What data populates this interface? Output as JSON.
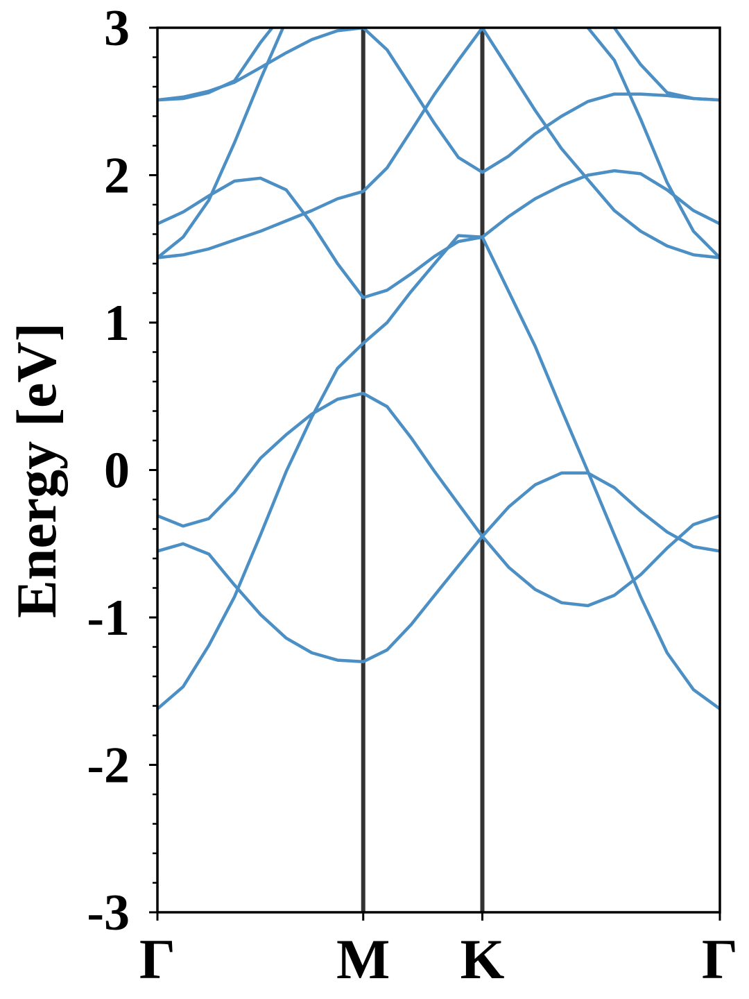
{
  "chart_data": {
    "type": "line",
    "ylabel": "Energy [eV]",
    "color": "#4b8fc4",
    "x": [
      0,
      0.072,
      0.144,
      0.216,
      0.289,
      0.361,
      0.433,
      0.505,
      0.577,
      0.644,
      0.711,
      0.777,
      0.844,
      0.911,
      0.985,
      1.059,
      1.133,
      1.207,
      1.281,
      1.355,
      1.429,
      1.503,
      1.577
    ],
    "series": [
      {
        "values": [
          -1.62,
          -1.47,
          -1.19,
          -0.86,
          -0.44,
          -0.01,
          0.36,
          0.69,
          0.86,
          1.0,
          1.21,
          1.4,
          1.59,
          1.58,
          1.21,
          0.84,
          0.41,
          -0.01,
          -0.44,
          -0.86,
          -1.24,
          -1.49,
          -1.62
        ]
      },
      {
        "values": [
          -0.55,
          -0.5,
          -0.57,
          -0.78,
          -0.98,
          -1.14,
          -1.24,
          -1.29,
          -1.3,
          -1.22,
          -1.05,
          -0.85,
          -0.65,
          -0.45,
          -0.25,
          -0.1,
          -0.02,
          -0.02,
          -0.12,
          -0.28,
          -0.42,
          -0.52,
          -0.55
        ]
      },
      {
        "values": [
          -0.31,
          -0.38,
          -0.33,
          -0.15,
          0.08,
          0.24,
          0.38,
          0.48,
          0.52,
          0.43,
          0.22,
          -0.01,
          -0.23,
          -0.45,
          -0.66,
          -0.81,
          -0.9,
          -0.92,
          -0.85,
          -0.71,
          -0.53,
          -0.37,
          -0.31
        ]
      },
      {
        "values": [
          1.44,
          1.46,
          1.5,
          1.56,
          1.62,
          1.69,
          1.76,
          1.84,
          1.89,
          2.05,
          2.3,
          2.55,
          2.78,
          3.0,
          2.72,
          2.44,
          2.18,
          1.97,
          1.76,
          1.62,
          1.52,
          1.46,
          1.44
        ]
      },
      {
        "values": [
          1.67,
          1.75,
          1.86,
          1.96,
          1.98,
          1.9,
          1.67,
          1.4,
          1.17,
          1.22,
          1.33,
          1.45,
          1.55,
          1.58,
          1.72,
          1.84,
          1.93,
          2.0,
          2.03,
          2.01,
          1.9,
          1.76,
          1.67
        ]
      },
      {
        "values": [
          1.44,
          1.58,
          1.83,
          2.22,
          2.65,
          3.05,
          null,
          null,
          null,
          null,
          null,
          null,
          null,
          null,
          null,
          null,
          null,
          3.0,
          2.78,
          2.38,
          1.95,
          1.62,
          1.44
        ]
      },
      {
        "values": [
          2.51,
          2.53,
          2.57,
          2.63,
          2.73,
          2.83,
          2.92,
          2.98,
          3.0,
          2.85,
          2.6,
          2.35,
          2.12,
          2.02,
          2.13,
          2.28,
          2.4,
          2.5,
          2.55,
          2.55,
          2.54,
          2.52,
          2.51
        ]
      },
      {
        "values": [
          2.51,
          2.52,
          2.56,
          2.64,
          2.9,
          3.12,
          null,
          null,
          null,
          null,
          null,
          null,
          null,
          null,
          null,
          null,
          null,
          null,
          3.0,
          2.75,
          2.56,
          2.52,
          2.51
        ]
      }
    ],
    "xlim": [
      0,
      1.577
    ],
    "xticks": [
      {
        "value": 0,
        "label": "Γ"
      },
      {
        "value": 0.577,
        "label": "M"
      },
      {
        "value": 0.911,
        "label": "K"
      },
      {
        "value": 1.577,
        "label": "Γ"
      }
    ],
    "ylim": [
      -3,
      3
    ],
    "yticks": [
      -3,
      -2,
      -1,
      0,
      1,
      2,
      3
    ],
    "yminor_ticks": [
      -2.8,
      -2.6,
      -2.4,
      -2.2,
      -1.8,
      -1.6,
      -1.4,
      -1.2,
      -0.8,
      -0.6,
      -0.4,
      -0.2,
      0.2,
      0.4,
      0.6,
      0.8,
      1.2,
      1.4,
      1.6,
      1.8,
      2.2,
      2.4,
      2.6,
      2.8
    ]
  }
}
